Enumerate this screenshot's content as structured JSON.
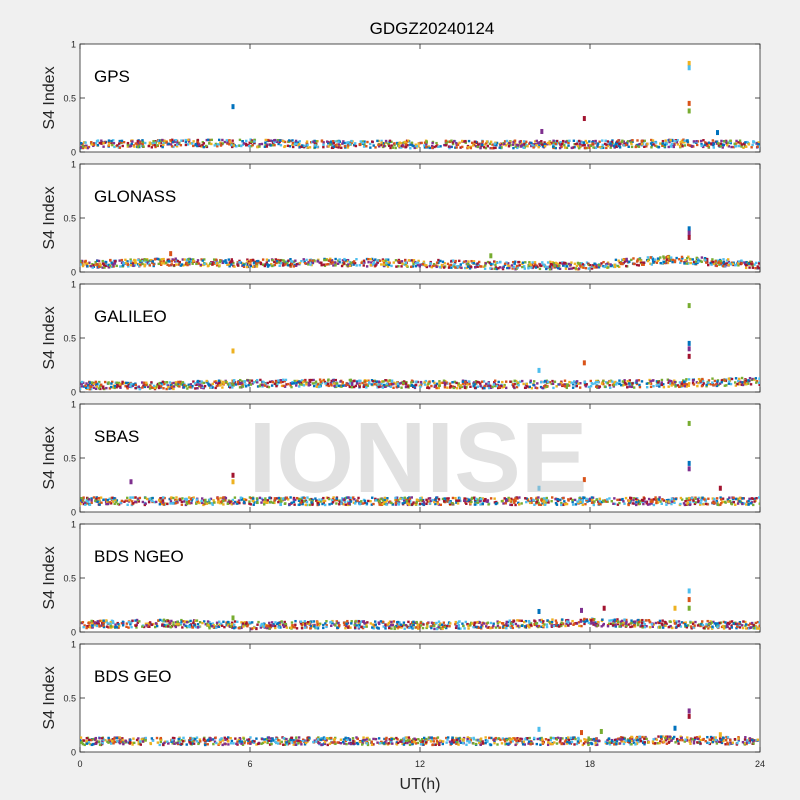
{
  "chart_data": {
    "type": "scatter",
    "title": "GDGZ20240124",
    "xlabel": "UT(h)",
    "ylabel": "S4 Index",
    "xlim": [
      0,
      24
    ],
    "ylim": [
      0,
      1
    ],
    "xticks": [
      0,
      6,
      12,
      18,
      24
    ],
    "yticks": [
      0,
      0.5,
      1
    ],
    "ytick_labels": [
      "0",
      "0.5",
      "1"
    ],
    "grid": false,
    "watermark": "IONISE",
    "series_colors": [
      "#0072bd",
      "#d95319",
      "#edb120",
      "#7e2f8e",
      "#77ac30",
      "#4dbeee",
      "#a2142f"
    ],
    "panels": [
      {
        "name": "GPS",
        "baseline": [
          [
            0,
            0.07
          ],
          [
            3,
            0.08
          ],
          [
            6,
            0.08
          ],
          [
            9,
            0.07
          ],
          [
            12,
            0.07
          ],
          [
            15,
            0.07
          ],
          [
            18,
            0.07
          ],
          [
            21,
            0.08
          ],
          [
            24,
            0.07
          ]
        ],
        "outliers": [
          [
            5.4,
            0.42
          ],
          [
            16.3,
            0.19
          ],
          [
            17.8,
            0.31
          ],
          [
            21.5,
            0.82
          ],
          [
            21.5,
            0.78
          ],
          [
            21.5,
            0.45
          ],
          [
            21.5,
            0.38
          ],
          [
            22.5,
            0.18
          ]
        ]
      },
      {
        "name": "GLONASS",
        "baseline": [
          [
            0,
            0.07
          ],
          [
            3,
            0.09
          ],
          [
            6,
            0.08
          ],
          [
            9,
            0.09
          ],
          [
            12,
            0.08
          ],
          [
            15,
            0.06
          ],
          [
            18,
            0.06
          ],
          [
            21,
            0.12
          ],
          [
            24,
            0.06
          ]
        ],
        "outliers": [
          [
            3.2,
            0.17
          ],
          [
            14.5,
            0.15
          ],
          [
            21.5,
            0.4
          ],
          [
            21.5,
            0.36
          ],
          [
            21.5,
            0.32
          ]
        ]
      },
      {
        "name": "GALILEO",
        "baseline": [
          [
            0,
            0.06
          ],
          [
            3,
            0.06
          ],
          [
            6,
            0.08
          ],
          [
            9,
            0.08
          ],
          [
            12,
            0.07
          ],
          [
            15,
            0.07
          ],
          [
            18,
            0.07
          ],
          [
            21,
            0.08
          ],
          [
            24,
            0.1
          ]
        ],
        "outliers": [
          [
            5.4,
            0.38
          ],
          [
            16.2,
            0.2
          ],
          [
            17.8,
            0.27
          ],
          [
            21.5,
            0.8
          ],
          [
            21.5,
            0.45
          ],
          [
            21.5,
            0.4
          ],
          [
            21.5,
            0.33
          ]
        ]
      },
      {
        "name": "SBAS",
        "baseline": [
          [
            0,
            0.1
          ],
          [
            3,
            0.1
          ],
          [
            6,
            0.1
          ],
          [
            9,
            0.1
          ],
          [
            12,
            0.1
          ],
          [
            15,
            0.1
          ],
          [
            18,
            0.1
          ],
          [
            21,
            0.1
          ],
          [
            24,
            0.1
          ]
        ],
        "outliers": [
          [
            1.8,
            0.28
          ],
          [
            5.4,
            0.34
          ],
          [
            5.4,
            0.28
          ],
          [
            16.2,
            0.22
          ],
          [
            17.8,
            0.3
          ],
          [
            21.5,
            0.82
          ],
          [
            21.5,
            0.45
          ],
          [
            21.5,
            0.4
          ],
          [
            22.6,
            0.22
          ]
        ]
      },
      {
        "name": "BDS NGEO",
        "baseline": [
          [
            0,
            0.07
          ],
          [
            3,
            0.08
          ],
          [
            6,
            0.06
          ],
          [
            9,
            0.07
          ],
          [
            12,
            0.06
          ],
          [
            15,
            0.07
          ],
          [
            18,
            0.09
          ],
          [
            21,
            0.07
          ],
          [
            24,
            0.06
          ]
        ],
        "outliers": [
          [
            5.4,
            0.13
          ],
          [
            16.2,
            0.19
          ],
          [
            17.7,
            0.2
          ],
          [
            18.5,
            0.22
          ],
          [
            21,
            0.22
          ],
          [
            21.5,
            0.38
          ],
          [
            21.5,
            0.3
          ],
          [
            21.5,
            0.22
          ]
        ]
      },
      {
        "name": "BDS GEO",
        "baseline": [
          [
            0,
            0.1
          ],
          [
            3,
            0.1
          ],
          [
            6,
            0.1
          ],
          [
            9,
            0.1
          ],
          [
            12,
            0.1
          ],
          [
            15,
            0.1
          ],
          [
            18,
            0.1
          ],
          [
            21,
            0.11
          ],
          [
            24,
            0.1
          ]
        ],
        "outliers": [
          [
            16.2,
            0.21
          ],
          [
            17.7,
            0.18
          ],
          [
            18.4,
            0.19
          ],
          [
            21,
            0.22
          ],
          [
            21.5,
            0.38
          ],
          [
            21.5,
            0.33
          ],
          [
            22.6,
            0.16
          ]
        ]
      }
    ]
  }
}
